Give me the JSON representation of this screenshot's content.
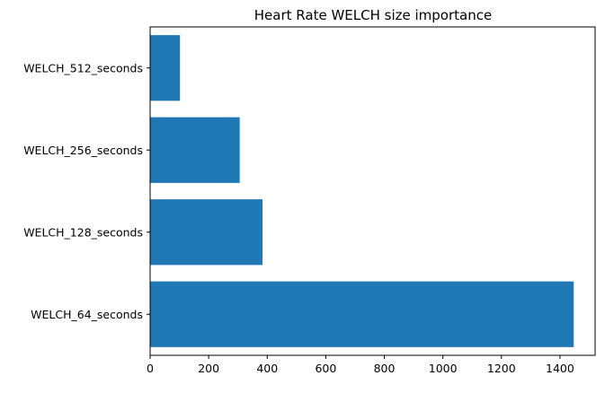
{
  "chart_data": {
    "type": "bar",
    "orientation": "horizontal",
    "title": "Heart Rate WELCH size importance",
    "xlabel": "",
    "ylabel": "",
    "categories": [
      "WELCH_64_seconds",
      "WELCH_128_seconds",
      "WELCH_256_seconds",
      "WELCH_512_seconds"
    ],
    "values": [
      1447,
      384,
      306,
      102
    ],
    "xlim": [
      0,
      1520
    ],
    "xticks": [
      "0",
      "200",
      "400",
      "600",
      "800",
      "1000",
      "1200",
      "1400"
    ],
    "bar_color": "#1f77b4",
    "grid": false,
    "legend": "none"
  }
}
